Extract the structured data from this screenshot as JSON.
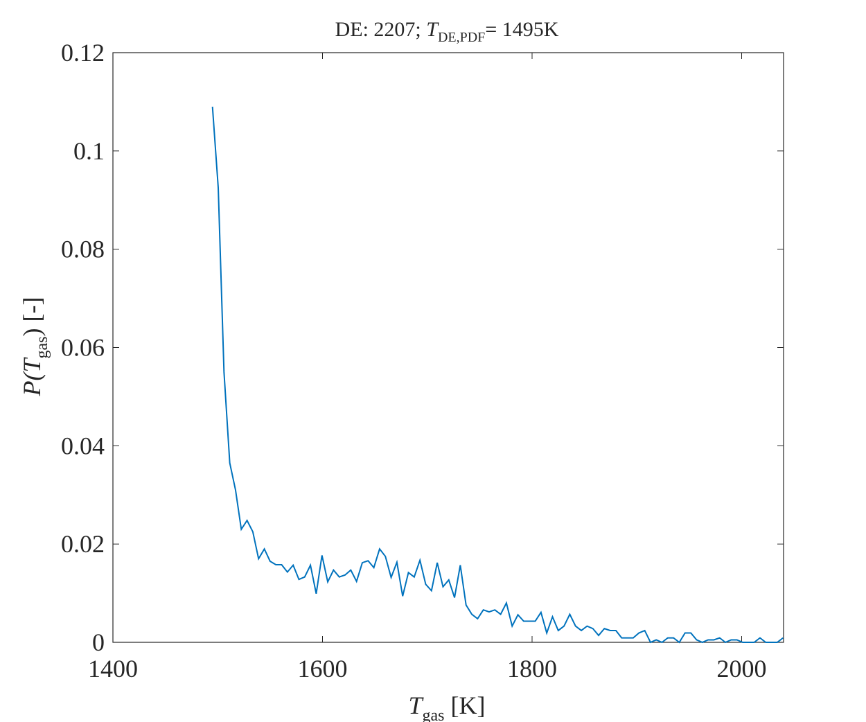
{
  "chart_data": {
    "type": "line",
    "title": [
      "DE: 2207; ",
      "T",
      "DE,PDF",
      "= 1495K"
    ],
    "xlabel": [
      "T",
      "gas",
      " [K]"
    ],
    "ylabel": [
      "P(",
      "T",
      "gas",
      ") [-]"
    ],
    "x": [
      1495,
      1500.5,
      1506,
      1511.5,
      1517,
      1522.5,
      1528,
      1533.5,
      1539,
      1544.5,
      1550,
      1555.5,
      1561,
      1566.5,
      1572,
      1577.5,
      1583,
      1588.5,
      1594,
      1599.5,
      1605,
      1610.5,
      1616,
      1621.5,
      1627,
      1632.5,
      1638,
      1643.5,
      1649,
      1654.5,
      1660,
      1665.5,
      1671,
      1676.5,
      1682,
      1687.5,
      1693,
      1698.5,
      1704,
      1709.5,
      1715,
      1720.5,
      1726,
      1731.5,
      1737,
      1742.5,
      1748,
      1753.5,
      1759,
      1764.5,
      1770,
      1775.5,
      1781,
      1786.5,
      1792,
      1797.5,
      1803,
      1808.5,
      1814,
      1819.5,
      1825,
      1830.5,
      1836,
      1841.5,
      1847,
      1852.5,
      1858,
      1863.5,
      1869,
      1874.5,
      1880,
      1885.5,
      1891,
      1896.5,
      1902,
      1907.5,
      1913,
      1918.5,
      1924,
      1929.5,
      1935,
      1940.5,
      1946,
      1951.5,
      1957,
      1962.5,
      1968,
      1973.5,
      1979,
      1984.5,
      1990,
      1995.5,
      2001,
      2006.5,
      2012,
      2017.5,
      2023,
      2028.5,
      2034,
      2039.5
    ],
    "series": [
      {
        "color": "#0072bd",
        "values": [
          0.109,
          0.0925,
          0.055,
          0.0365,
          0.031,
          0.023,
          0.0248,
          0.0225,
          0.017,
          0.019,
          0.0165,
          0.0158,
          0.0158,
          0.0143,
          0.0157,
          0.0128,
          0.0133,
          0.0157,
          0.0099,
          0.0177,
          0.0123,
          0.0147,
          0.0133,
          0.0137,
          0.0147,
          0.0124,
          0.0162,
          0.0166,
          0.0152,
          0.019,
          0.0175,
          0.0132,
          0.0163,
          0.0094,
          0.0142,
          0.0133,
          0.0167,
          0.0118,
          0.0105,
          0.0162,
          0.0113,
          0.0127,
          0.0091,
          0.0157,
          0.0076,
          0.0057,
          0.0048,
          0.0066,
          0.0062,
          0.0066,
          0.0057,
          0.008,
          0.0033,
          0.0056,
          0.0043,
          0.0043,
          0.0043,
          0.0061,
          0.0019,
          0.0052,
          0.0024,
          0.0033,
          0.0057,
          0.0033,
          0.0024,
          0.0033,
          0.0028,
          0.0014,
          0.0028,
          0.0024,
          0.0024,
          0.0009,
          0.0009,
          0.0009,
          0.0019,
          0.0024,
          0,
          0.0005,
          0,
          0.0009,
          0.0009,
          0,
          0.0019,
          0.0019,
          0.0005,
          0,
          0.0005,
          0.0005,
          0.0009,
          0,
          0.0005,
          0.0005,
          0,
          0,
          0,
          0.0009,
          0,
          0,
          0,
          0.0009
        ]
      }
    ],
    "xlim": [
      1400,
      2040
    ],
    "ylim": [
      0,
      0.12
    ],
    "xticks": [
      1400,
      1600,
      1800,
      2000
    ],
    "yticks": [
      0,
      0.02,
      0.04,
      0.06,
      0.08,
      0.1,
      0.12
    ]
  }
}
